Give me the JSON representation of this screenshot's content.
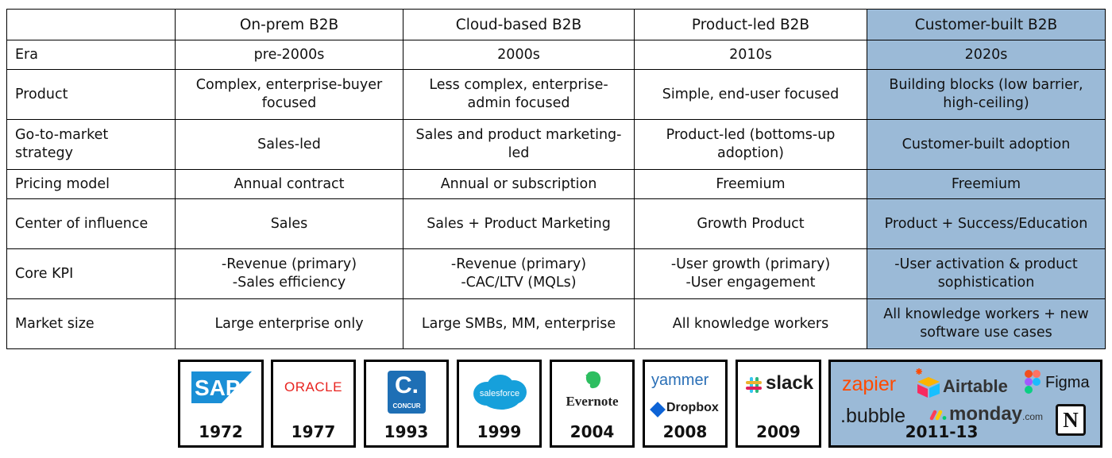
{
  "table": {
    "headers": [
      "",
      "On-prem B2B",
      "Cloud-based B2B",
      "Product-led B2B",
      "Customer-built B2B"
    ],
    "rows": [
      {
        "label": "Era",
        "cells": [
          "pre-2000s",
          "2000s",
          "2010s",
          "2020s"
        ]
      },
      {
        "label": "Product",
        "cells": [
          "Complex, enterprise-buyer focused",
          "Less complex, enterprise-admin focused",
          "Simple, end-user focused",
          "Building blocks (low barrier, high-ceiling)"
        ]
      },
      {
        "label": "Go-to-market strategy",
        "cells": [
          "Sales-led",
          "Sales and product marketing-led",
          "Product-led (bottoms-up adoption)",
          "Customer-built adoption"
        ]
      },
      {
        "label": "Pricing model",
        "cells": [
          "Annual contract",
          "Annual or subscription",
          "Freemium",
          "Freemium"
        ]
      },
      {
        "label": "Center of influence",
        "cells": [
          "Sales",
          "Sales + Product Marketing",
          "Growth Product",
          "Product + Success/Education"
        ]
      },
      {
        "label": "Core KPI",
        "cells": [
          "-Revenue (primary)\n-Sales efficiency",
          "-Revenue (primary)\n-CAC/LTV (MQLs)",
          "-User growth (primary)\n-User engagement",
          "-User activation & product sophistication"
        ]
      },
      {
        "label": "Market size",
        "cells": [
          "Large enterprise only",
          "Large SMBs, MM, enterprise",
          "All knowledge workers",
          "All knowledge workers + new software use cases"
        ]
      }
    ]
  },
  "logos": [
    {
      "names": [
        "SAP"
      ],
      "year": "1972"
    },
    {
      "names": [
        "ORACLE"
      ],
      "year": "1977"
    },
    {
      "names": [
        "C.",
        "CONCUR"
      ],
      "year": "1993"
    },
    {
      "names": [
        "salesforce"
      ],
      "year": "1999"
    },
    {
      "names": [
        "Evernote"
      ],
      "year": "2004"
    },
    {
      "names": [
        "yammer",
        "Dropbox"
      ],
      "year": "2008"
    },
    {
      "names": [
        "slack"
      ],
      "year": "2009"
    },
    {
      "names": [
        "zapier",
        "Airtable",
        "Figma",
        ".bubble",
        "monday",
        ".com",
        "N"
      ],
      "year": "2011-13"
    }
  ],
  "colors": {
    "highlight": "#9bbad7",
    "sap": "#1a8fd6",
    "oracle": "#e8231f",
    "concur": "#1e6fb5",
    "salesforce": "#16a0db",
    "evernote": "#2dbe60",
    "yammer": "#2a6fb6",
    "dropbox": "#0d63d6",
    "zapier": "#ff4a00",
    "airtable_yellow": "#fcb400",
    "monday_red": "#ff3d57",
    "monday_yellow": "#ffcb00",
    "monday_green": "#00ca72"
  }
}
